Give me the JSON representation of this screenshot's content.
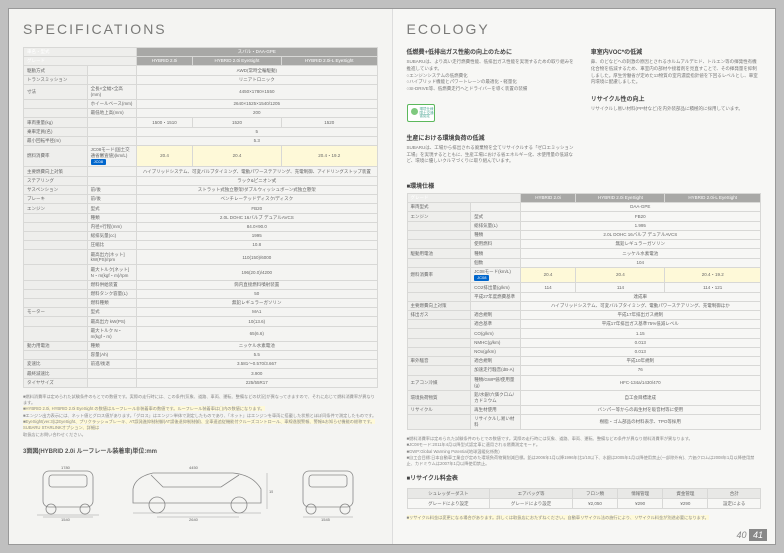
{
  "left": {
    "title": "SPECIFICATIONS",
    "grades_header": [
      "HYBRID 2.0i",
      "HYBRID 2.0i EyeSight",
      "HYBRID 2.0i-L EyeSight"
    ],
    "model_row": {
      "label": "車名・型式",
      "value": "スバル・DAA-GPE"
    },
    "rows": [
      {
        "label": "駆動方式",
        "sub": "",
        "vals": [
          "",
          "AWD(常時全輪駆動)",
          ""
        ]
      },
      {
        "label": "トランスミッション",
        "sub": "",
        "vals": [
          "",
          "リニアトロニック",
          ""
        ]
      },
      {
        "label": "寸法",
        "sub": "全長×全幅×全高(mm)",
        "vals": [
          "",
          "4450×1780×1550",
          ""
        ]
      },
      {
        "label": "",
        "sub": "ホイールベース(mm)",
        "vals": [
          "",
          "2640×1525×1540/1205",
          ""
        ]
      },
      {
        "label": "",
        "sub": "最低地上高(mm)",
        "vals": [
          "",
          "200",
          ""
        ]
      },
      {
        "label": "車両重量(kg)",
        "sub": "",
        "vals": [
          "1500・1510",
          "1520",
          "1520"
        ]
      },
      {
        "label": "乗車定員(名)",
        "sub": "",
        "vals": [
          "",
          "5",
          ""
        ]
      },
      {
        "label": "最小回転半径(m)",
        "sub": "",
        "vals": [
          "",
          "5.3",
          ""
        ]
      },
      {
        "label": "燃料消費率",
        "sub": "JC08モード(国土交通省審査値)(km/L)",
        "vals": [
          "20.4",
          "20.4",
          "20.4・19.2"
        ],
        "hl": true
      },
      {
        "label": "主要燃費向上対策",
        "sub": "",
        "vals": [
          "",
          "ハイブリッドシステム、可変バルブタイミング、電動パワーステアリング、充電制御、アイドリングストップ装置",
          ""
        ]
      },
      {
        "label": "ステアリング",
        "sub": "",
        "vals": [
          "",
          "ラック&ピニオン式",
          ""
        ]
      },
      {
        "label": "サスペンション",
        "sub": "前/後",
        "vals": [
          "",
          "ストラット式独立懸架/ダブルウィッシュボーン式独立懸架",
          ""
        ]
      },
      {
        "label": "ブレーキ",
        "sub": "前/後",
        "vals": [
          "",
          "ベンチレーテッドディスク/ディスク",
          ""
        ]
      },
      {
        "label": "エンジン",
        "sub": "型式",
        "vals": [
          "",
          "FB20",
          ""
        ]
      },
      {
        "label": "",
        "sub": "種類",
        "vals": [
          "",
          "2.0L DOHC 16バルブ デュアルAVCS",
          ""
        ]
      },
      {
        "label": "",
        "sub": "内径×行程(mm)",
        "vals": [
          "",
          "84.0×90.0",
          ""
        ]
      },
      {
        "label": "",
        "sub": "総排気量(cc)",
        "vals": [
          "",
          "1995",
          ""
        ]
      },
      {
        "label": "",
        "sub": "圧縮比",
        "vals": [
          "",
          "10.8",
          ""
        ]
      },
      {
        "label": "",
        "sub": "最高出力[ネット] kW(PS)/rpm",
        "vals": [
          "",
          "110(150)/6000",
          ""
        ]
      },
      {
        "label": "",
        "sub": "最大トルク[ネット] N・m(kgf・m)/rpm",
        "vals": [
          "",
          "196(20.0)/4200",
          ""
        ]
      },
      {
        "label": "",
        "sub": "燃料供給装置",
        "vals": [
          "",
          "筒内直接燃料噴射装置",
          ""
        ]
      },
      {
        "label": "",
        "sub": "燃料タンク容量(L)",
        "vals": [
          "",
          "50",
          ""
        ]
      },
      {
        "label": "",
        "sub": "燃料種類",
        "vals": [
          "",
          "無鉛レギュラーガソリン",
          ""
        ]
      },
      {
        "label": "モーター",
        "sub": "型式",
        "vals": [
          "",
          "MA1",
          ""
        ]
      },
      {
        "label": "",
        "sub": "最高出力 kW(PS)",
        "vals": [
          "",
          "10(13.6)",
          ""
        ]
      },
      {
        "label": "",
        "sub": "最大トルク N・m(kgf・m)",
        "vals": [
          "",
          "65(6.6)",
          ""
        ]
      },
      {
        "label": "動力用電池",
        "sub": "種類",
        "vals": [
          "",
          "ニッケル水素電池",
          ""
        ]
      },
      {
        "label": "",
        "sub": "容量(Ah)",
        "vals": [
          "",
          "5.5",
          ""
        ]
      },
      {
        "label": "変速比",
        "sub": "前進/後退",
        "vals": [
          "",
          "3.581〜0.570/3.667",
          ""
        ]
      },
      {
        "label": "最終減速比",
        "sub": "",
        "vals": [
          "",
          "3.900",
          ""
        ]
      },
      {
        "label": "タイヤサイズ",
        "sub": "",
        "vals": [
          "225/55R17",
          "225/55R17",
          "225/55R17"
        ]
      }
    ],
    "notes": [
      "■燃料消費率は定められた試験条件のもとでの数値です。実際の走行時には、この条件(気象、道路、車両、運転、整備などの状況)が異なってきますので、それに応じて燃料消費率が異なります。",
      "■HYBRID 2.0i, HYBRID 2.0i EyeSight の数値はルーフレール非装着車の数値です。ルーフレール装着車は( )内の数値になります。",
      "■エンジン出力表示には、ネット値とグロス値があります。「グロス」はエンジン単体で測定したものであり、「ネット」はエンジンを車両に搭載した状態とほぼ同条件で測定したものです。",
      "■EyeSight(ver.3)はEyeSight、プリクラッシュブレーキ、AT誤発進抑制制御(AT誤後退抑制制御)、全車速追従機能付クルーズコントロール、車線逸脱警報、警報&お知らせ機能の総称です。SUBARU STARLINKオプション、詳細は",
      "取扱店にお問い合わせください。"
    ],
    "diagram_title": "3面図(HYBRID 2.0i ルーフレール装着車)単位:mm",
    "dims": {
      "front_track": "1540",
      "front_width": "1780",
      "wheelbase": "2640",
      "length": "4450",
      "height": "1590",
      "rear_track": "1545",
      "rear_width": "1780",
      "front_overhang": "955"
    },
    "pagenum": "40"
  },
  "right": {
    "title": "ECOLOGY",
    "blocks": [
      {
        "heading": "低燃費+低排出ガス性能の向上のために",
        "text": "SUBARUは、より高い走行燃費性能、低排出ガス性能を実現するための取り組みを推進しています。\n○エンジンシステムの低燃費化\n○ハイブリッド機能とパワートレーンの最適化・軽量化\n○SI-DRIVE等、低燃費走行へとドライバーを導く装置の装備"
      },
      {
        "heading": "車室内VOC*の低減",
        "text": "鼻、のどなどへの刺激の原因とされるホルムアルデヒド、トルエン等の揮発性有機化合物を低減するため、車室内の部材や接着剤を見直すことで、その揮発量を抑制しました。厚生労働省が定めた13物質の室内濃度指針値を下回るレベルとし、車室内環境に配慮しました。"
      },
      {
        "heading": "生産における環境負荷の低減",
        "text": "SUBARUは、工場から排出される廃棄物を全てリサイクルする「ゼロエミッション工場」を実現するとともに、生産工場における省エネルギー化、水使用量の低減など、環境に優しいクルマづくりに取り組んでいます。"
      },
      {
        "heading": "リサイクル性の向上",
        "text": "リサイクルし易い材料(PP材など)を内外装部品に積極的に採用しています。"
      }
    ],
    "badge_text": "環境仕様\n国土交通省認定",
    "env_table_title": "■環境仕様",
    "env_header": [
      "HYBRID 2.0i",
      "HYBRID 2.0i EyeSight",
      "HYBRID 2.0i-L EyeSight"
    ],
    "env_rows": [
      {
        "label": "車両型式",
        "sub": "",
        "vals": [
          "",
          "DAA-GPE",
          ""
        ]
      },
      {
        "label": "エンジン",
        "sub": "型式",
        "vals": [
          "",
          "FB20",
          ""
        ]
      },
      {
        "label": "",
        "sub": "総排気量(L)",
        "vals": [
          "",
          "1.995",
          ""
        ]
      },
      {
        "label": "",
        "sub": "種類",
        "vals": [
          "",
          "2.0L DOHC 16バルブ デュアルAVCS",
          ""
        ]
      },
      {
        "label": "",
        "sub": "使用燃料",
        "vals": [
          "",
          "無鉛レギュラーガソリン",
          ""
        ]
      },
      {
        "label": "駆動用電池",
        "sub": "種類",
        "vals": [
          "",
          "ニッケル水素電池",
          ""
        ]
      },
      {
        "label": "",
        "sub": "個数",
        "vals": [
          "",
          "104",
          ""
        ]
      },
      {
        "label": "燃料消費率",
        "sub": "JC08モード(km/L)",
        "vals": [
          "20.4",
          "20.4",
          "20.4・19.2"
        ],
        "hl": true
      },
      {
        "label": "",
        "sub": "CO2排出量(g/km)",
        "vals": [
          "114",
          "114",
          "114・121"
        ]
      },
      {
        "label": "",
        "sub": "平成27年度燃費基準",
        "vals": [
          "",
          "達成車",
          ""
        ]
      },
      {
        "label": "主要燃費向上対策",
        "sub": "",
        "vals": [
          "",
          "ハイブリッドシステム、可変バルブタイミング、電動パワーステアリング、充電制御ほか",
          ""
        ]
      },
      {
        "label": "排出ガス",
        "sub": "適合規制",
        "vals": [
          "",
          "平成17年排出ガス規制",
          ""
        ]
      },
      {
        "label": "",
        "sub": "適合基準",
        "vals": [
          "",
          "平成17年排出ガス基準75%低減レベル",
          ""
        ]
      },
      {
        "label": "",
        "sub": "CO(g/km)",
        "vals": [
          "",
          "1.15",
          ""
        ]
      },
      {
        "label": "",
        "sub": "NMHC(g/km)",
        "vals": [
          "",
          "0.013",
          ""
        ]
      },
      {
        "label": "",
        "sub": "NOx(g/km)",
        "vals": [
          "",
          "0.013",
          ""
        ]
      },
      {
        "label": "車外騒音",
        "sub": "適合規制",
        "vals": [
          "",
          "平成10年規制",
          ""
        ]
      },
      {
        "label": "",
        "sub": "加速走行騒音(dB-A)",
        "vals": [
          "",
          "76",
          ""
        ]
      },
      {
        "label": "エアコン冷媒",
        "sub": "種類/GWP値/使用量(g)",
        "vals": [
          "",
          "HFC-134a/1430/470",
          ""
        ]
      },
      {
        "label": "環境負荷物質",
        "sub": "鉛/水銀/六価クロム/カドミウム",
        "vals": [
          "",
          "自工会目標達成",
          ""
        ]
      },
      {
        "label": "リサイクル",
        "sub": "再生材使用",
        "vals": [
          "",
          "バンパー等からの再生材を吸音材等に使用",
          ""
        ]
      },
      {
        "label": "",
        "sub": "リサイクルし易い材料",
        "vals": [
          "",
          "樹脂・ゴム部品の材料表示、TPO等採用",
          ""
        ]
      }
    ],
    "env_notes": [
      "■燃料消費率は定められた試験条件のもとでの数値です。実際の走行時には気象、道路、車両、運転、整備などの条件が異なり燃料消費率が異なります。",
      "■JC08モード:2011年4月以降型式認定車に適用される燃費測定モード。",
      "■GWP:Global Warming Potential(地球温暖化係数)",
      "■自工会目標:日本自動車工業会が定めた環境負荷物質削減目標。鉛は2006年1月以降1996年比1/10以下、水銀は2005年1月以降使用禁止(一部除外有)、六価クロムは2008年1月以降使用禁止、カドミウムは2007年1月以降使用禁止。"
    ],
    "recycle_title": "■リサイクル料金表",
    "recycle_header": [
      "シュレッダーダスト",
      "エアバッグ等",
      "フロン類",
      "情報管理",
      "資金管理",
      "合計"
    ],
    "recycle_vals": [
      "グレードにより設定",
      "グレードにより設定",
      "¥2,050",
      "¥290",
      "¥290",
      "設定による"
    ],
    "recycle_notes": "■リサイクル料金は変更になる場合があります。詳しくは取扱店におたずねください。自動車リサイクル法の施行により、リサイクル料金が別途必要になります。",
    "pagenum": "41"
  }
}
